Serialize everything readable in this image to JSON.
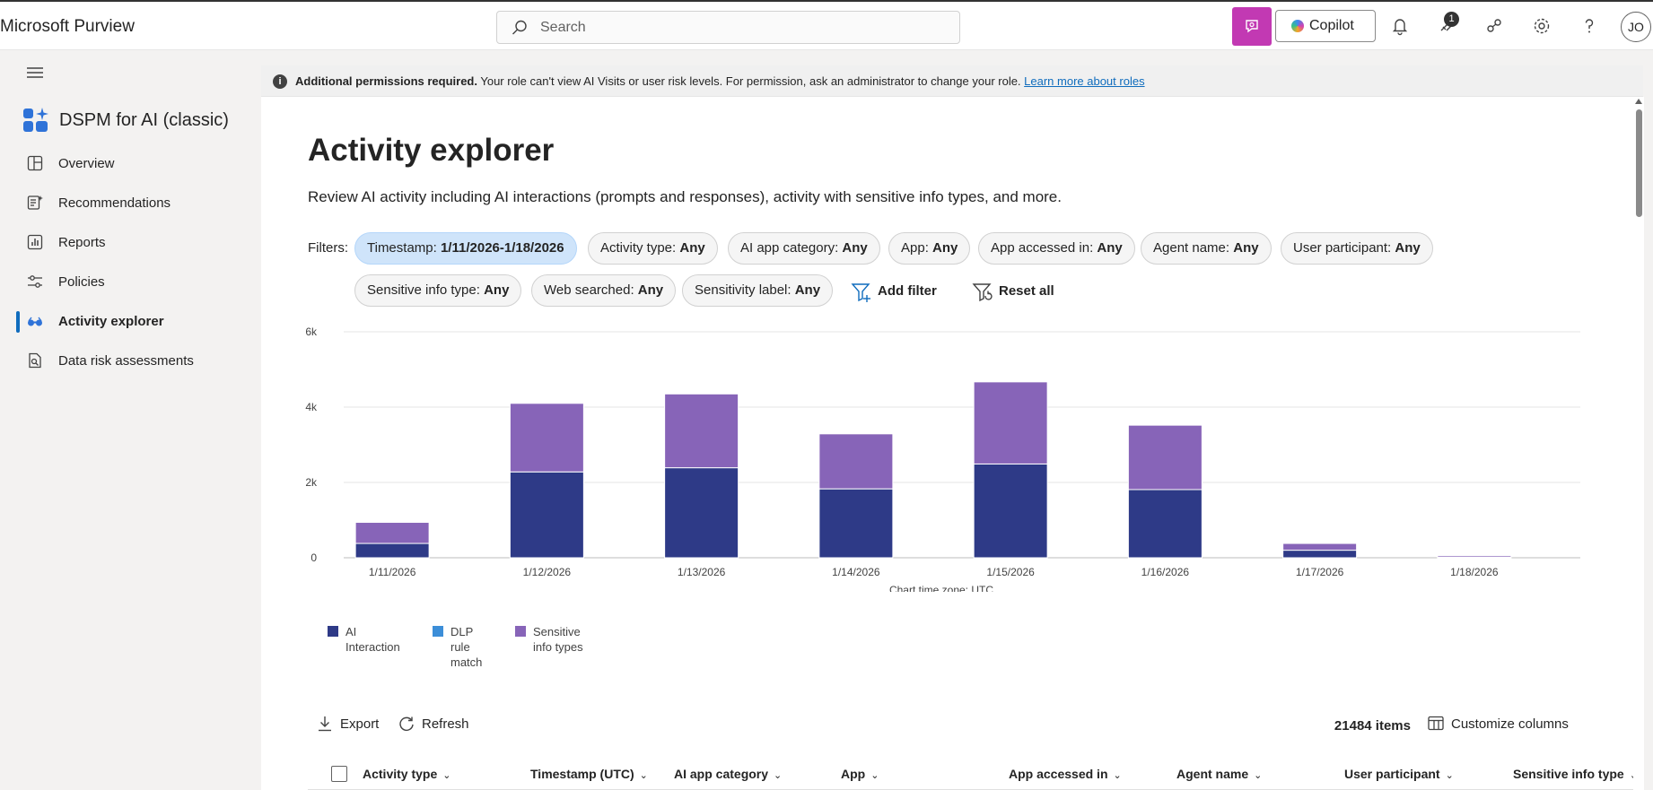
{
  "header": {
    "app_title": "Microsoft Purview",
    "search_placeholder": "Search",
    "copilot_label": "Copilot",
    "notification_count": "1",
    "avatar_initials": "JO"
  },
  "sidebar": {
    "title": "DSPM for AI (classic)",
    "items": [
      {
        "label": "Overview",
        "icon": "overview-icon"
      },
      {
        "label": "Recommendations",
        "icon": "recommendations-icon"
      },
      {
        "label": "Reports",
        "icon": "reports-icon"
      },
      {
        "label": "Policies",
        "icon": "policies-icon"
      },
      {
        "label": "Activity explorer",
        "icon": "activity-explorer-icon",
        "active": true
      },
      {
        "label": "Data risk assessments",
        "icon": "data-risk-icon"
      }
    ]
  },
  "notice": {
    "bold": "Additional permissions required.",
    "text": " Your role can't view AI Visits or user risk levels. For permission, ask an administrator to change your role. ",
    "link": "Learn more about roles"
  },
  "page": {
    "title": "Activity explorer",
    "description": "Review AI activity including AI interactions (prompts and responses), activity with sensitive info types, and more."
  },
  "filters": {
    "label": "Filters:",
    "pills": [
      {
        "name": "Timestamp: ",
        "value": "1/11/2026-1/18/2026"
      },
      {
        "name": "Activity type: ",
        "value": "Any"
      },
      {
        "name": "AI app category: ",
        "value": "Any"
      },
      {
        "name": "App: ",
        "value": "Any"
      },
      {
        "name": "App accessed in: ",
        "value": "Any"
      },
      {
        "name": "Agent name: ",
        "value": "Any"
      },
      {
        "name": "User participant: ",
        "value": "Any"
      },
      {
        "name": "Sensitive info type: ",
        "value": "Any"
      },
      {
        "name": "Web searched: ",
        "value": "Any"
      },
      {
        "name": "Sensitivity label: ",
        "value": "Any"
      }
    ],
    "add_filter": "Add filter",
    "reset_all": "Reset all"
  },
  "chart_data": {
    "type": "bar",
    "stacked": true,
    "categories": [
      "1/11/2026",
      "1/12/2026",
      "1/13/2026",
      "1/14/2026",
      "1/15/2026",
      "1/16/2026",
      "1/17/2026",
      "1/18/2026"
    ],
    "series": [
      {
        "name": "AI Interaction",
        "color": "#2e3a87",
        "values": [
          380,
          2280,
          2390,
          1830,
          2490,
          1810,
          200,
          20
        ]
      },
      {
        "name": "DLP rule match",
        "color": "#3c8ed8",
        "values": [
          0,
          0,
          0,
          0,
          0,
          0,
          0,
          0
        ]
      },
      {
        "name": "Sensitive info types",
        "color": "#8764b8",
        "values": [
          560,
          1820,
          1960,
          1460,
          2180,
          1710,
          180,
          40
        ]
      }
    ],
    "y_ticks": [
      "0",
      "2k",
      "4k",
      "6k"
    ],
    "ylim": [
      0,
      6000
    ],
    "xlabel": "Chart time zone: UTC",
    "grid": true,
    "legend": "bottom-left"
  },
  "legend_labels": [
    "AI Interaction",
    "DLP rule match",
    "Sensitive info types"
  ],
  "toolbar": {
    "export": "Export",
    "refresh": "Refresh",
    "items_count": "21484 items",
    "customize_columns": "Customize columns"
  },
  "table": {
    "columns": [
      "Activity type",
      "Timestamp (UTC)",
      "AI app category",
      "App",
      "App accessed in",
      "Agent name",
      "User participant",
      "Sensitive info type"
    ]
  }
}
